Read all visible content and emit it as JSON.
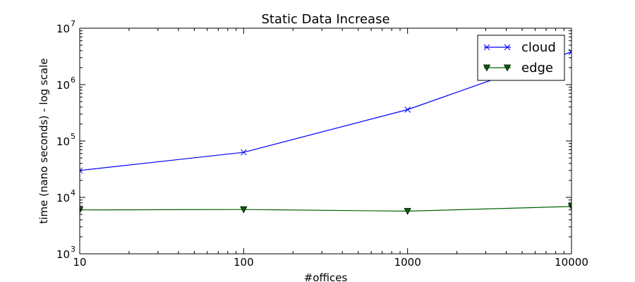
{
  "chart_data": {
    "type": "line",
    "title": "Static Data Increase",
    "xlabel": "#offices",
    "ylabel": "time (nano seconds) - log scale",
    "x_scale": "log",
    "y_scale": "log",
    "xlim": [
      10,
      10000
    ],
    "ylim": [
      1000,
      10000000
    ],
    "x_ticks": [
      10,
      100,
      1000,
      10000
    ],
    "x_tick_labels": [
      "10",
      "100",
      "1000",
      "10000"
    ],
    "y_ticks": [
      {
        "value": 1000,
        "base": "10",
        "exp": "3"
      },
      {
        "value": 10000,
        "base": "10",
        "exp": "4"
      },
      {
        "value": 100000,
        "base": "10",
        "exp": "5"
      },
      {
        "value": 1000000,
        "base": "10",
        "exp": "6"
      },
      {
        "value": 10000000,
        "base": "10",
        "exp": "7"
      }
    ],
    "grid": false,
    "legend_position": "top-right",
    "series": [
      {
        "name": "cloud",
        "color": "#0000ff",
        "marker": "x",
        "x": [
          10,
          100,
          1000,
          10000
        ],
        "y": [
          30000,
          63000,
          360000,
          3800000
        ]
      },
      {
        "name": "edge",
        "color": "#006400",
        "marker": "triangle-down",
        "x": [
          10,
          100,
          1000,
          10000
        ],
        "y": [
          6000,
          6100,
          5700,
          6900
        ]
      }
    ]
  }
}
